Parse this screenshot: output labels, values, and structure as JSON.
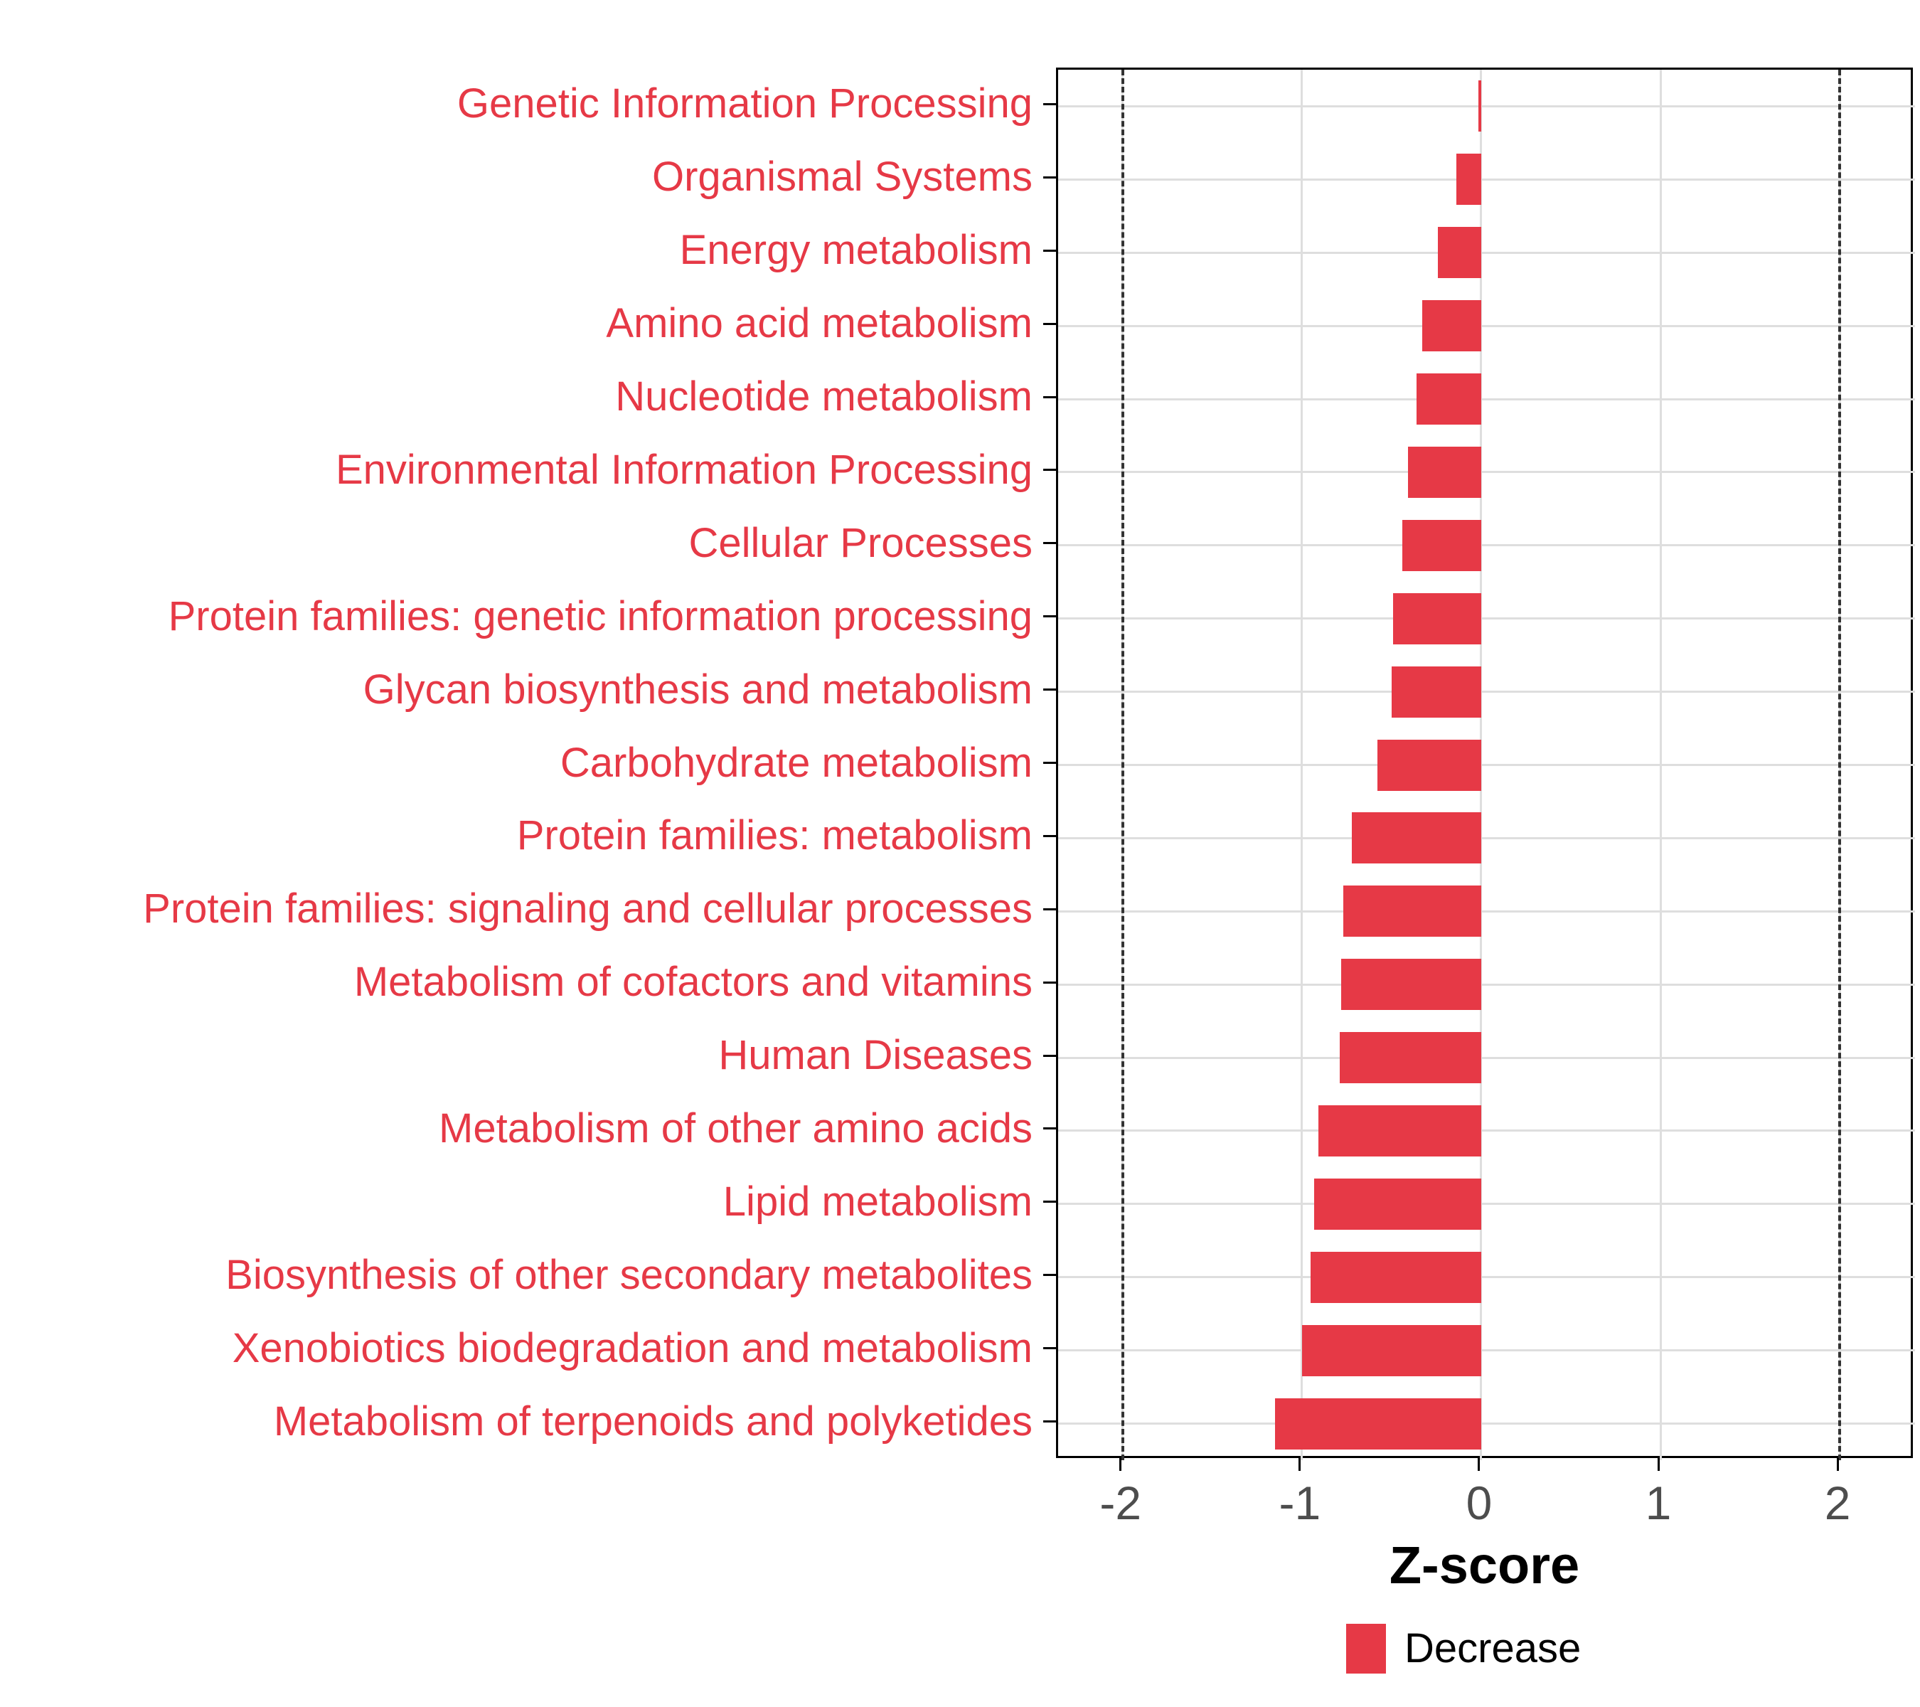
{
  "chart_data": {
    "type": "bar",
    "orientation": "horizontal",
    "title": "",
    "xlabel": "Z-score",
    "ylabel": "",
    "categories": [
      "Genetic Information Processing",
      "Organismal Systems",
      "Energy metabolism",
      "Amino acid metabolism",
      "Nucleotide metabolism",
      "Environmental Information Processing",
      "Cellular Processes",
      "Protein families: genetic information processing",
      "Glycan biosynthesis and metabolism",
      "Carbohydrate metabolism",
      "Protein families: metabolism",
      "Protein families: signaling and cellular processes",
      "Metabolism of cofactors and vitamins",
      "Human Diseases",
      "Metabolism of other amino acids",
      "Lipid metabolism",
      "Biosynthesis of other secondary metabolites",
      "Xenobiotics biodegradation and metabolism",
      "Metabolism of terpenoids and polyketides"
    ],
    "values": [
      -0.015,
      -0.14,
      -0.24,
      -0.33,
      -0.36,
      -0.41,
      -0.44,
      -0.49,
      -0.5,
      -0.58,
      -0.72,
      -0.77,
      -0.78,
      -0.79,
      -0.91,
      -0.93,
      -0.95,
      -1.0,
      -1.15
    ],
    "series_name": "Decrease",
    "x_ticks": [
      -2,
      -1,
      0,
      1,
      2
    ],
    "x_tick_labels": [
      "-2",
      "-1",
      "0",
      "1",
      "2"
    ],
    "xlim": [
      -2.36,
      2.42
    ],
    "reference_lines": [
      {
        "x": -2,
        "style": "dashed"
      },
      {
        "x": 2,
        "style": "dashed"
      }
    ],
    "grid": true,
    "legend": {
      "position": "bottom",
      "entries": [
        {
          "label": "Decrease",
          "color": "#E63946"
        }
      ]
    },
    "colors": {
      "bar": "#E63946",
      "category_label": "#E63946",
      "grid": "#DEDEDE",
      "reference_line": "#333333",
      "axis_text": "#4D4D4D",
      "axis_line": "#000000",
      "background": "#FFFFFF"
    }
  }
}
